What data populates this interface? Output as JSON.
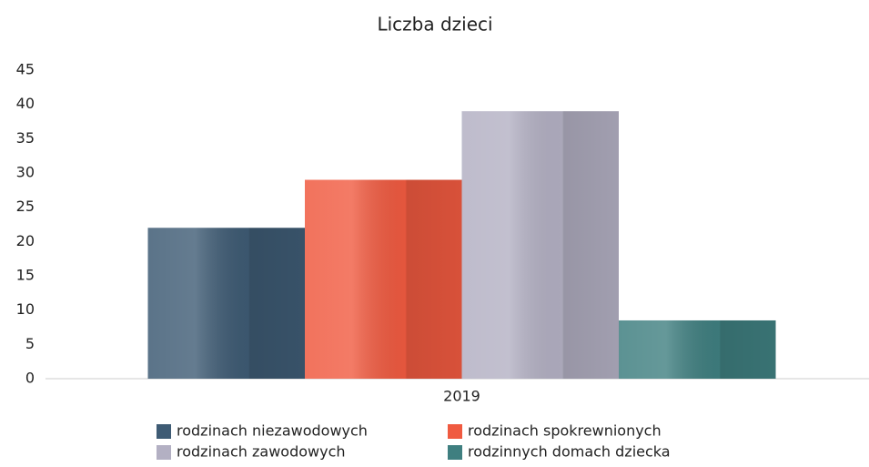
{
  "chart_data": {
    "type": "bar",
    "title": "Liczba dzieci",
    "categories": [
      "2019"
    ],
    "series": [
      {
        "name": "rodzinach niezawodowych",
        "color": "#3e5b74",
        "values": [
          22
        ]
      },
      {
        "name": "rodzinach spokrewnionych",
        "color": "#f05a40",
        "values": [
          29
        ]
      },
      {
        "name": "rodzinach zawodowych",
        "color": "#b3b0c3",
        "values": [
          39
        ]
      },
      {
        "name": "rodzinnych domach dziecka",
        "color": "#3f7f80",
        "values": [
          8.5
        ]
      }
    ],
    "ylim": [
      0,
      45
    ],
    "yticks": [
      0,
      5,
      10,
      15,
      20,
      25,
      30,
      35,
      40,
      45
    ],
    "grid": false
  }
}
